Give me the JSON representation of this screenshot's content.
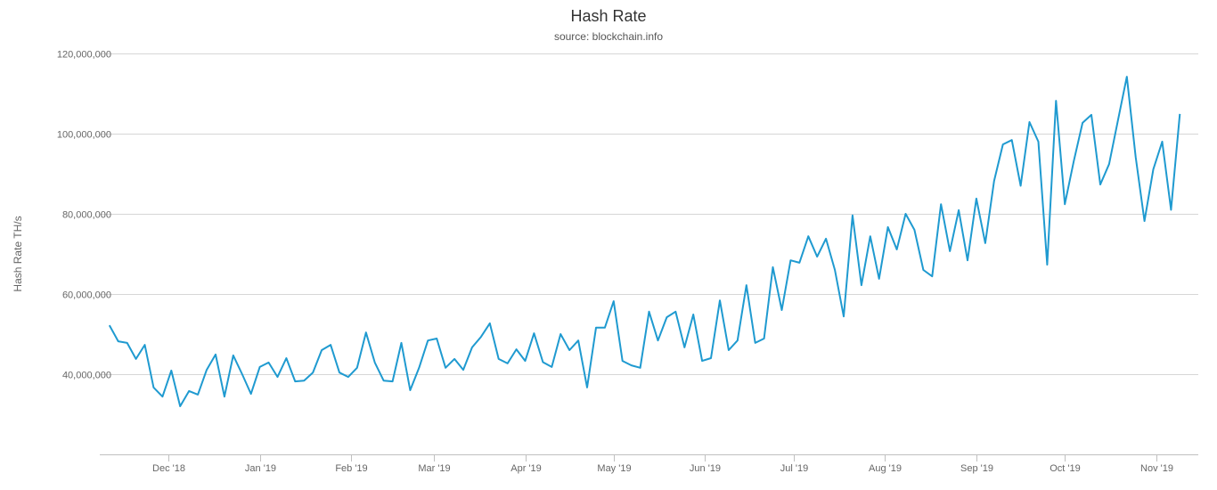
{
  "chart_data": {
    "type": "line",
    "title": "Hash Rate",
    "subtitle": "source: blockchain.info",
    "xlabel": "",
    "ylabel": "Hash Rate TH/s",
    "ylim": [
      20000000,
      120000000
    ],
    "y_ticks": [
      {
        "value": 40000000,
        "label": "40,000,000"
      },
      {
        "value": 60000000,
        "label": "60,000,000"
      },
      {
        "value": 80000000,
        "label": "80,000,000"
      },
      {
        "value": 100000000,
        "label": "100,000,000"
      },
      {
        "value": 120000000,
        "label": "120,000,000"
      }
    ],
    "x_ticks": [
      {
        "date": "2018-12-01",
        "label": "Dec '18"
      },
      {
        "date": "2019-01-01",
        "label": "Jan '19"
      },
      {
        "date": "2019-02-01",
        "label": "Feb '19"
      },
      {
        "date": "2019-03-01",
        "label": "Mar '19"
      },
      {
        "date": "2019-04-01",
        "label": "Apr '19"
      },
      {
        "date": "2019-05-01",
        "label": "May '19"
      },
      {
        "date": "2019-06-01",
        "label": "Jun '19"
      },
      {
        "date": "2019-07-01",
        "label": "Jul '19"
      },
      {
        "date": "2019-08-01",
        "label": "Aug '19"
      },
      {
        "date": "2019-09-01",
        "label": "Sep '19"
      },
      {
        "date": "2019-10-01",
        "label": "Oct '19"
      },
      {
        "date": "2019-11-01",
        "label": "Nov '19"
      }
    ],
    "grid": "horizontal",
    "legend": "none",
    "line_color": "#1f9ad0",
    "series": [
      {
        "x": [
          "2018-11-11",
          "2018-11-14",
          "2018-11-17",
          "2018-11-20",
          "2018-11-23",
          "2018-11-26",
          "2018-11-29",
          "2018-12-02",
          "2018-12-05",
          "2018-12-08",
          "2018-12-11",
          "2018-12-14",
          "2018-12-17",
          "2018-12-20",
          "2018-12-23",
          "2018-12-26",
          "2018-12-29",
          "2019-01-01",
          "2019-01-04",
          "2019-01-07",
          "2019-01-10",
          "2019-01-13",
          "2019-01-16",
          "2019-01-19",
          "2019-01-22",
          "2019-01-25",
          "2019-01-28",
          "2019-01-31",
          "2019-02-03",
          "2019-02-06",
          "2019-02-09",
          "2019-02-12",
          "2019-02-15",
          "2019-02-18",
          "2019-02-21",
          "2019-02-24",
          "2019-02-27",
          "2019-03-02",
          "2019-03-05",
          "2019-03-08",
          "2019-03-11",
          "2019-03-14",
          "2019-03-17",
          "2019-03-20",
          "2019-03-23",
          "2019-03-26",
          "2019-03-29",
          "2019-04-01",
          "2019-04-04",
          "2019-04-07",
          "2019-04-10",
          "2019-04-13",
          "2019-04-16",
          "2019-04-19",
          "2019-04-22",
          "2019-04-25",
          "2019-04-28",
          "2019-05-01",
          "2019-05-04",
          "2019-05-07",
          "2019-05-10",
          "2019-05-13",
          "2019-05-16",
          "2019-05-19",
          "2019-05-22",
          "2019-05-25",
          "2019-05-28",
          "2019-05-31",
          "2019-06-03",
          "2019-06-06",
          "2019-06-09",
          "2019-06-12",
          "2019-06-15",
          "2019-06-18",
          "2019-06-21",
          "2019-06-24",
          "2019-06-27",
          "2019-06-30",
          "2019-07-03",
          "2019-07-06",
          "2019-07-09",
          "2019-07-12",
          "2019-07-15",
          "2019-07-18",
          "2019-07-21",
          "2019-07-24",
          "2019-07-27",
          "2019-07-30",
          "2019-08-02",
          "2019-08-05",
          "2019-08-08",
          "2019-08-11",
          "2019-08-14",
          "2019-08-17",
          "2019-08-20",
          "2019-08-23",
          "2019-08-26",
          "2019-08-29",
          "2019-09-01",
          "2019-09-04",
          "2019-09-07",
          "2019-09-10",
          "2019-09-13",
          "2019-09-16",
          "2019-09-19",
          "2019-09-22",
          "2019-09-25",
          "2019-09-28",
          "2019-10-01",
          "2019-10-04",
          "2019-10-07",
          "2019-10-10",
          "2019-10-13",
          "2019-10-16",
          "2019-10-19",
          "2019-10-22",
          "2019-10-25",
          "2019-10-28",
          "2019-10-31",
          "2019-11-03",
          "2019-11-06",
          "2019-11-09"
        ],
        "values": [
          52200000,
          48200000,
          47800000,
          43800000,
          47300000,
          36700000,
          34400000,
          40900000,
          32000000,
          35800000,
          34900000,
          41100000,
          44900000,
          34400000,
          44700000,
          40000000,
          35100000,
          41800000,
          42900000,
          39300000,
          44000000,
          38200000,
          38400000,
          40400000,
          46000000,
          47300000,
          40400000,
          39300000,
          41600000,
          50400000,
          42900000,
          38400000,
          38200000,
          47800000,
          36000000,
          41600000,
          48400000,
          48900000,
          41600000,
          43800000,
          41100000,
          46700000,
          49300000,
          52700000,
          43800000,
          42700000,
          46200000,
          43300000,
          50200000,
          43000000,
          41800000,
          50000000,
          46000000,
          48400000,
          36700000,
          51600000,
          51600000,
          58200000,
          43300000,
          42200000,
          41600000,
          55600000,
          48400000,
          54200000,
          55600000,
          46700000,
          54900000,
          43300000,
          44000000,
          58400000,
          46000000,
          48400000,
          62200000,
          47800000,
          48900000,
          66700000,
          56000000,
          68400000,
          67800000,
          74400000,
          69300000,
          73800000,
          66000000,
          54400000,
          79600000,
          62200000,
          74400000,
          63800000,
          76700000,
          71100000,
          80000000,
          76000000,
          66000000,
          64400000,
          82400000,
          70700000,
          80900000,
          68400000,
          83800000,
          72700000,
          88200000,
          97300000,
          98400000,
          87000000,
          102900000,
          98000000,
          67300000,
          108200000,
          82400000,
          93100000,
          102700000,
          104700000,
          87300000,
          92400000,
          103300000,
          114200000,
          94200000,
          78200000,
          91100000,
          98000000,
          81000000,
          104900000
        ]
      }
    ]
  }
}
